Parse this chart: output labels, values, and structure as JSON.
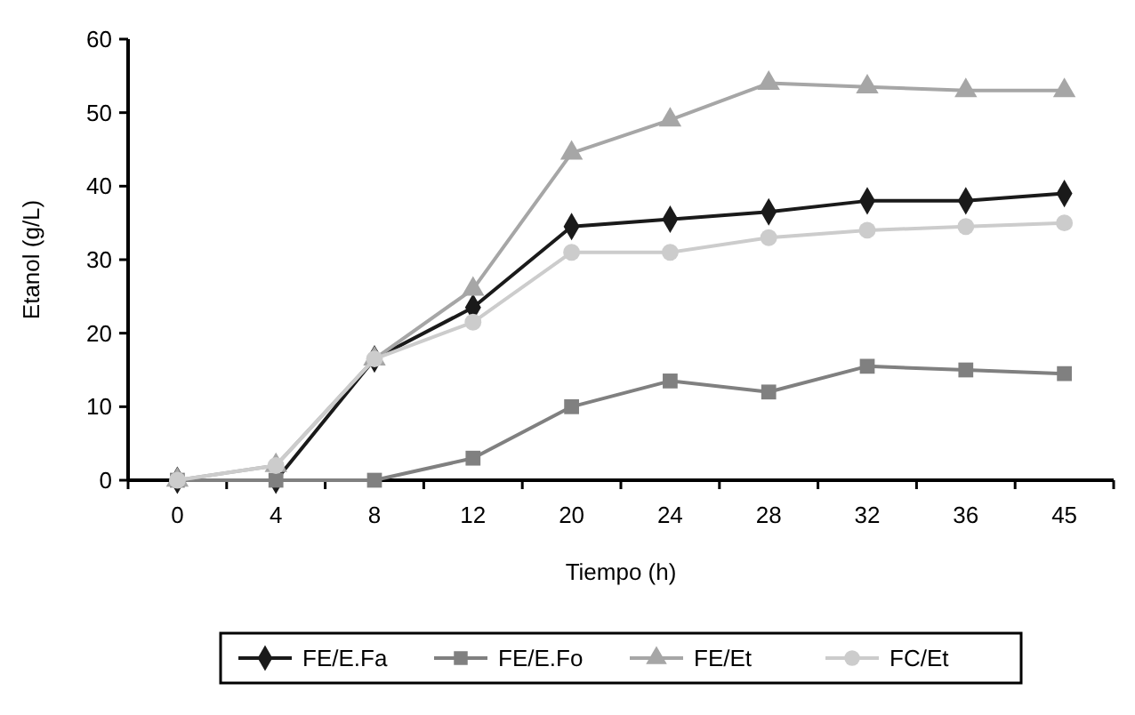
{
  "chart_data": {
    "type": "line",
    "xlabel": "Tiempo (h)",
    "ylabel": "Etanol (g/L)",
    "categories": [
      "0",
      "4",
      "8",
      "12",
      "20",
      "24",
      "28",
      "32",
      "36",
      "45"
    ],
    "ylim": [
      0,
      60
    ],
    "yticks": [
      0,
      10,
      20,
      30,
      40,
      50,
      60
    ],
    "grid": false,
    "legend": "bottom",
    "line_style": "solid",
    "series": [
      {
        "name": "FE/E.Fa",
        "color": "#1a1a1a",
        "marker": "diamond",
        "values": [
          0,
          0,
          16.5,
          23.5,
          34.5,
          35.5,
          36.5,
          38,
          38,
          39
        ]
      },
      {
        "name": "FE/E.Fo",
        "color": "#808080",
        "marker": "square",
        "values": [
          0,
          0,
          0,
          3,
          10,
          13.5,
          12,
          15.5,
          15,
          14.5
        ]
      },
      {
        "name": "FE/Et",
        "color": "#a6a6a6",
        "marker": "triangle",
        "values": [
          0,
          2,
          16.5,
          26,
          44.5,
          49,
          54,
          53.5,
          53,
          53
        ]
      },
      {
        "name": "FC/Et",
        "color": "#cccccc",
        "marker": "circle",
        "values": [
          0,
          2,
          16.5,
          21.5,
          31,
          31,
          33,
          34,
          34.5,
          35
        ]
      }
    ]
  }
}
